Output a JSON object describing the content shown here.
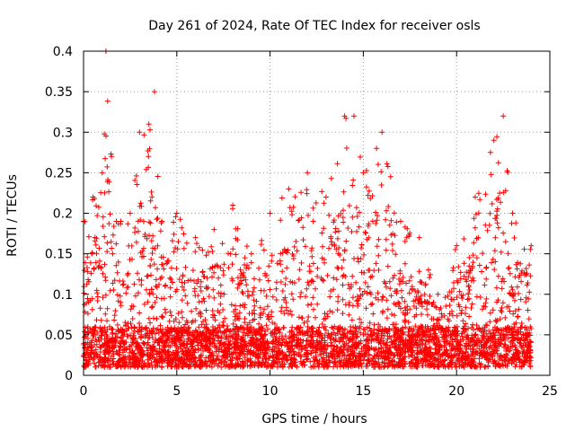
{
  "chart_data": {
    "type": "scatter",
    "title": "Day 261 of 2024, Rate Of TEC Index for receiver osls",
    "xlabel": "GPS time / hours",
    "ylabel": "ROTI / TECUs",
    "xlim": [
      0,
      25
    ],
    "ylim": [
      0,
      0.4
    ],
    "xticks": [
      "0",
      "5",
      "10",
      "15",
      "20",
      "25"
    ],
    "yticks": [
      "0",
      "0.05",
      "0.1",
      "0.15",
      "0.2",
      "0.25",
      "0.3",
      "0.35",
      "0.4"
    ],
    "grid": true,
    "marker": "+",
    "color": "#ff0000",
    "hour_range": [
      0,
      24
    ],
    "envelope": [
      [
        0.0,
        0.19
      ],
      [
        0.5,
        0.22
      ],
      [
        1.0,
        0.25
      ],
      [
        1.2,
        0.4
      ],
      [
        1.5,
        0.27
      ],
      [
        2.0,
        0.19
      ],
      [
        2.5,
        0.2
      ],
      [
        3.0,
        0.3
      ],
      [
        3.5,
        0.31
      ],
      [
        3.8,
        0.35
      ],
      [
        4.2,
        0.19
      ],
      [
        5.0,
        0.2
      ],
      [
        6.0,
        0.17
      ],
      [
        7.0,
        0.18
      ],
      [
        8.0,
        0.21
      ],
      [
        9.0,
        0.15
      ],
      [
        10.0,
        0.2
      ],
      [
        11.0,
        0.23
      ],
      [
        12.0,
        0.25
      ],
      [
        13.0,
        0.22
      ],
      [
        14.0,
        0.32
      ],
      [
        14.5,
        0.32
      ],
      [
        15.0,
        0.25
      ],
      [
        16.0,
        0.3
      ],
      [
        17.0,
        0.19
      ],
      [
        18.0,
        0.17
      ],
      [
        19.0,
        0.1
      ],
      [
        20.0,
        0.16
      ],
      [
        21.0,
        0.22
      ],
      [
        22.0,
        0.29
      ],
      [
        22.5,
        0.32
      ],
      [
        23.0,
        0.2
      ],
      [
        24.0,
        0.16
      ]
    ],
    "baseline": [
      0.01,
      0.06
    ]
  }
}
